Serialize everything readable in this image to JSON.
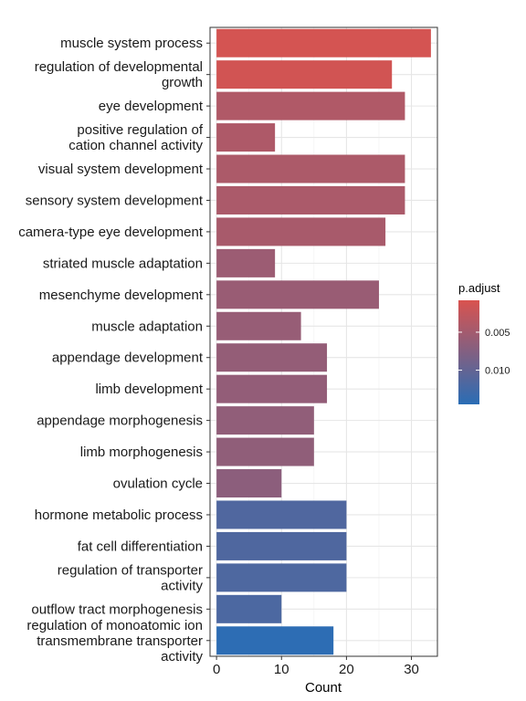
{
  "chart_data": {
    "type": "bar",
    "orientation": "horizontal",
    "xlabel": "Count",
    "xlim": [
      -1,
      34
    ],
    "x_ticks": [
      0,
      10,
      20,
      30
    ],
    "grid": true,
    "legend": {
      "title": "p.adjust",
      "placement": "right",
      "range": [
        0.0008,
        0.0145
      ],
      "ticks": [
        0.005,
        0.01
      ],
      "tick_labels": [
        "0.005",
        "0.010"
      ],
      "color_low_value": "#d9534f",
      "color_high_value": "#2a6db5"
    },
    "categories": [
      "muscle system process",
      "regulation of developmental growth",
      "eye development",
      "positive regulation of cation channel activity",
      "visual system development",
      "sensory system development",
      "camera-type eye development",
      "striated muscle adaptation",
      "mesenchyme development",
      "muscle adaptation",
      "appendage development",
      "limb development",
      "appendage morphogenesis",
      "limb morphogenesis",
      "ovulation cycle",
      "hormone metabolic process",
      "fat cell differentiation",
      "regulation of transporter activity",
      "outflow tract morphogenesis",
      "regulation of monoatomic ion transmembrane transporter activity"
    ],
    "category_lines": [
      [
        "muscle system process"
      ],
      [
        "regulation of developmental",
        "growth"
      ],
      [
        "eye development"
      ],
      [
        "positive regulation of",
        "cation channel activity"
      ],
      [
        "visual system development"
      ],
      [
        "sensory system development"
      ],
      [
        "camera-type eye development"
      ],
      [
        "striated muscle adaptation"
      ],
      [
        "mesenchyme development"
      ],
      [
        "muscle adaptation"
      ],
      [
        "appendage development"
      ],
      [
        "limb development"
      ],
      [
        "appendage morphogenesis"
      ],
      [
        "limb morphogenesis"
      ],
      [
        "ovulation cycle"
      ],
      [
        "hormone metabolic process"
      ],
      [
        "fat cell differentiation"
      ],
      [
        "regulation of transporter",
        "activity"
      ],
      [
        "outflow tract morphogenesis"
      ],
      [
        "regulation of monoatomic ion",
        "transmembrane transporter",
        "activity"
      ]
    ],
    "values": [
      33,
      27,
      29,
      9,
      29,
      29,
      26,
      9,
      25,
      13,
      17,
      17,
      15,
      15,
      10,
      20,
      20,
      20,
      10,
      18
    ],
    "p_adjust": [
      0.0012,
      0.0014,
      0.004,
      0.0042,
      0.0043,
      0.0044,
      0.0046,
      0.0056,
      0.0058,
      0.006,
      0.0062,
      0.0063,
      0.0064,
      0.0065,
      0.0068,
      0.0115,
      0.0116,
      0.0117,
      0.0118,
      0.0143
    ]
  }
}
